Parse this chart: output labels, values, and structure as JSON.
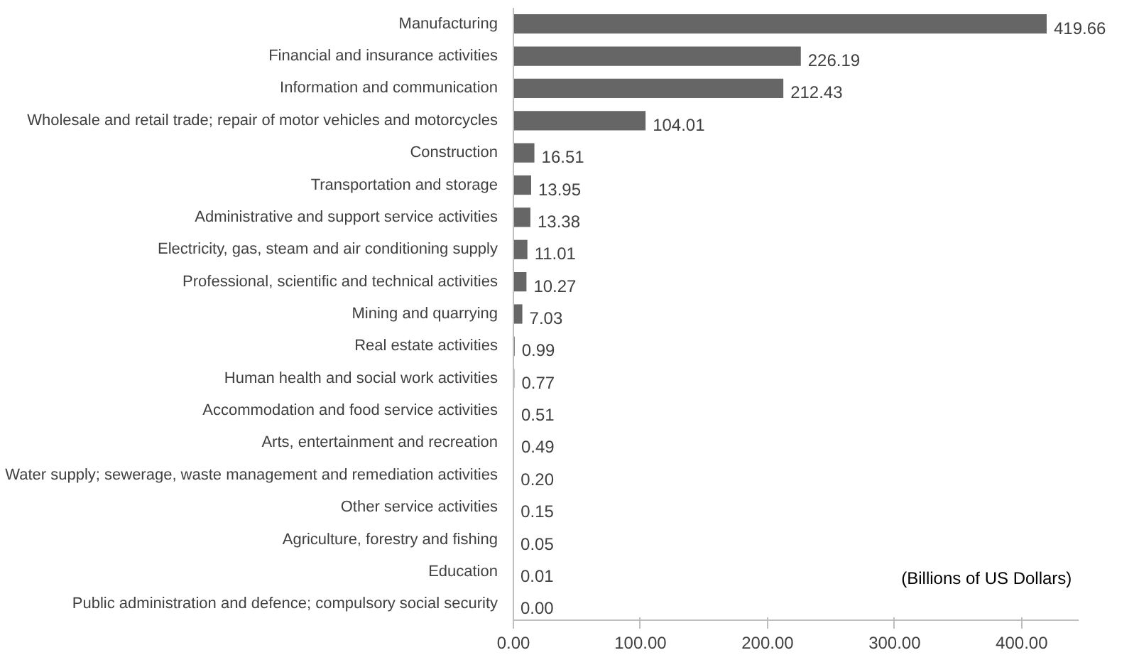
{
  "chart_data": {
    "type": "bar",
    "orientation": "horizontal",
    "categories": [
      "Manufacturing",
      "Financial and insurance activities",
      "Information and communication",
      "Wholesale and retail trade; repair of motor vehicles and motorcycles",
      "Construction",
      "Transportation and storage",
      "Administrative and support service activities",
      "Electricity, gas, steam and air conditioning supply",
      "Professional, scientific and technical activities",
      "Mining and quarrying",
      "Real estate activities",
      "Human health and social work activities",
      "Accommodation and food service activities",
      "Arts, entertainment and recreation",
      "Water supply; sewerage, waste management and remediation activities",
      "Other service activities",
      "Agriculture, forestry and fishing",
      "Education",
      "Public administration and defence; compulsory social security"
    ],
    "values": [
      419.66,
      226.19,
      212.43,
      104.01,
      16.51,
      13.95,
      13.38,
      11.01,
      10.27,
      7.03,
      0.99,
      0.77,
      0.51,
      0.49,
      0.2,
      0.15,
      0.05,
      0.01,
      0.0
    ],
    "value_labels": [
      "419.66",
      "226.19",
      "212.43",
      "104.01",
      "16.51",
      "13.95",
      "13.38",
      "11.01",
      "10.27",
      "7.03",
      "0.99",
      "0.77",
      "0.51",
      "0.49",
      "0.20",
      "0.15",
      "0.05",
      "0.01",
      "0.00"
    ],
    "color": "#666666",
    "xlim": [
      0,
      445
    ],
    "xticks": [
      {
        "value": 0,
        "label": "0.00"
      },
      {
        "value": 100,
        "label": "100.00"
      },
      {
        "value": 200,
        "label": "200.00"
      },
      {
        "value": 300,
        "label": "300.00"
      },
      {
        "value": 400,
        "label": "400.00"
      }
    ],
    "annotations": [
      "(Billions of US Dollars)"
    ],
    "grid": false
  }
}
